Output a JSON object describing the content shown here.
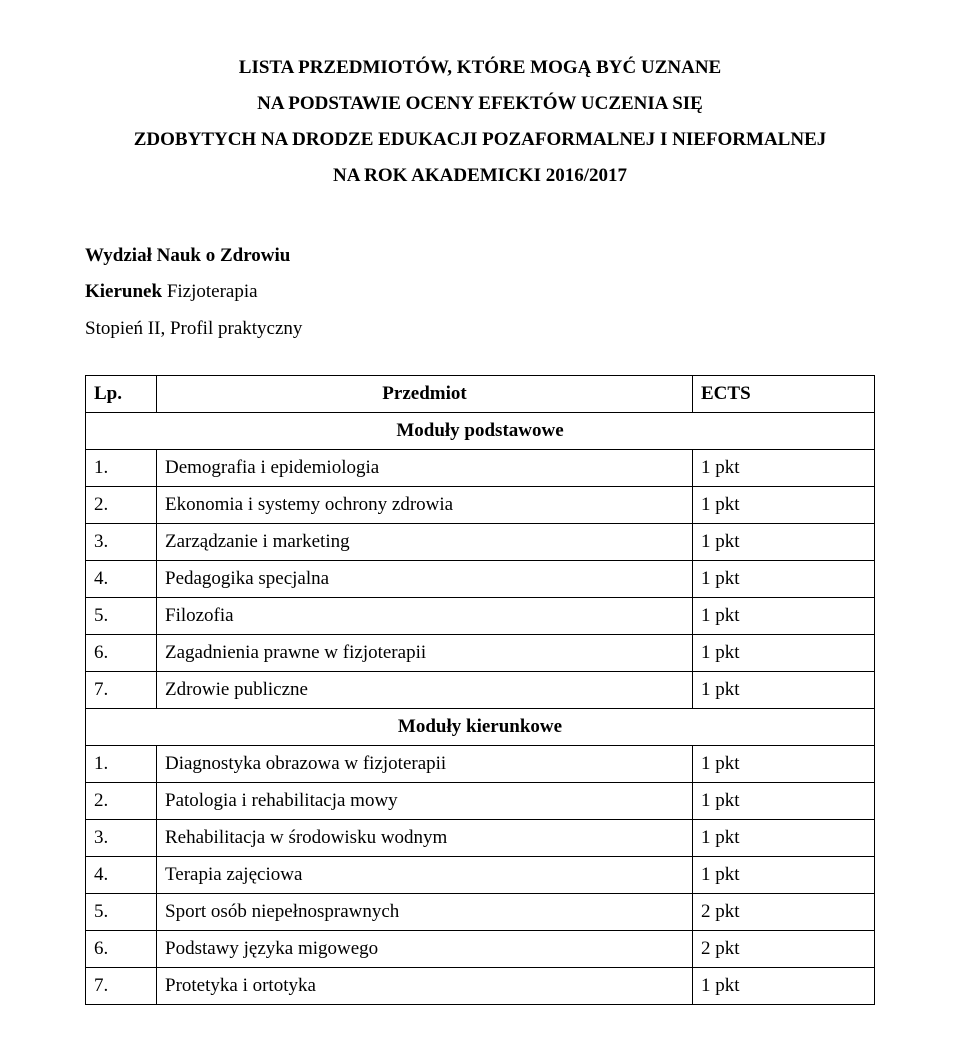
{
  "header": {
    "line1": "LISTA PRZEDMIOTÓW, KTÓRE MOGĄ BYĆ UZNANE",
    "line2": "NA PODSTAWIE OCENY EFEKTÓW UCZENIA SIĘ",
    "line3": "ZDOBYTYCH NA DRODZE EDUKACJI POZAFORMALNEJ I NIEFORMALNEJ",
    "line4": "NA ROK AKADEMICKI 2016/2017"
  },
  "subheader": {
    "faculty": "Wydział Nauk o Zdrowiu",
    "program_label": "Kierunek ",
    "program": "Fizjoterapia",
    "level": "Stopień II, Profil praktyczny"
  },
  "table": {
    "headers": {
      "lp": "Lp.",
      "subject": "Przedmiot",
      "ects": "ECTS"
    },
    "section1": {
      "title": "Moduły podstawowe",
      "rows": [
        {
          "lp": "1.",
          "subject": "Demografia i epidemiologia",
          "ects": "1 pkt"
        },
        {
          "lp": "2.",
          "subject": "Ekonomia i systemy ochrony zdrowia",
          "ects": "1 pkt"
        },
        {
          "lp": "3.",
          "subject": "Zarządzanie i marketing",
          "ects": "1 pkt"
        },
        {
          "lp": "4.",
          "subject": "Pedagogika specjalna",
          "ects": "1 pkt"
        },
        {
          "lp": "5.",
          "subject": "Filozofia",
          "ects": "1 pkt"
        },
        {
          "lp": "6.",
          "subject": "Zagadnienia prawne w fizjoterapii",
          "ects": "1 pkt"
        },
        {
          "lp": "7.",
          "subject": "Zdrowie publiczne",
          "ects": "1 pkt"
        }
      ]
    },
    "section2": {
      "title": "Moduły kierunkowe",
      "rows": [
        {
          "lp": "1.",
          "subject": "Diagnostyka obrazowa w fizjoterapii",
          "ects": "1 pkt"
        },
        {
          "lp": "2.",
          "subject": "Patologia i rehabilitacja mowy",
          "ects": "1 pkt"
        },
        {
          "lp": "3.",
          "subject": "Rehabilitacja w środowisku wodnym",
          "ects": "1 pkt"
        },
        {
          "lp": "4.",
          "subject": "Terapia zajęciowa",
          "ects": "1 pkt"
        },
        {
          "lp": "5.",
          "subject": "Sport osób niepełnosprawnych",
          "ects": "2 pkt"
        },
        {
          "lp": "6.",
          "subject": "Podstawy języka migowego",
          "ects": "2 pkt"
        },
        {
          "lp": "7.",
          "subject": "Protetyka i ortotyka",
          "ects": "1 pkt"
        }
      ]
    }
  }
}
